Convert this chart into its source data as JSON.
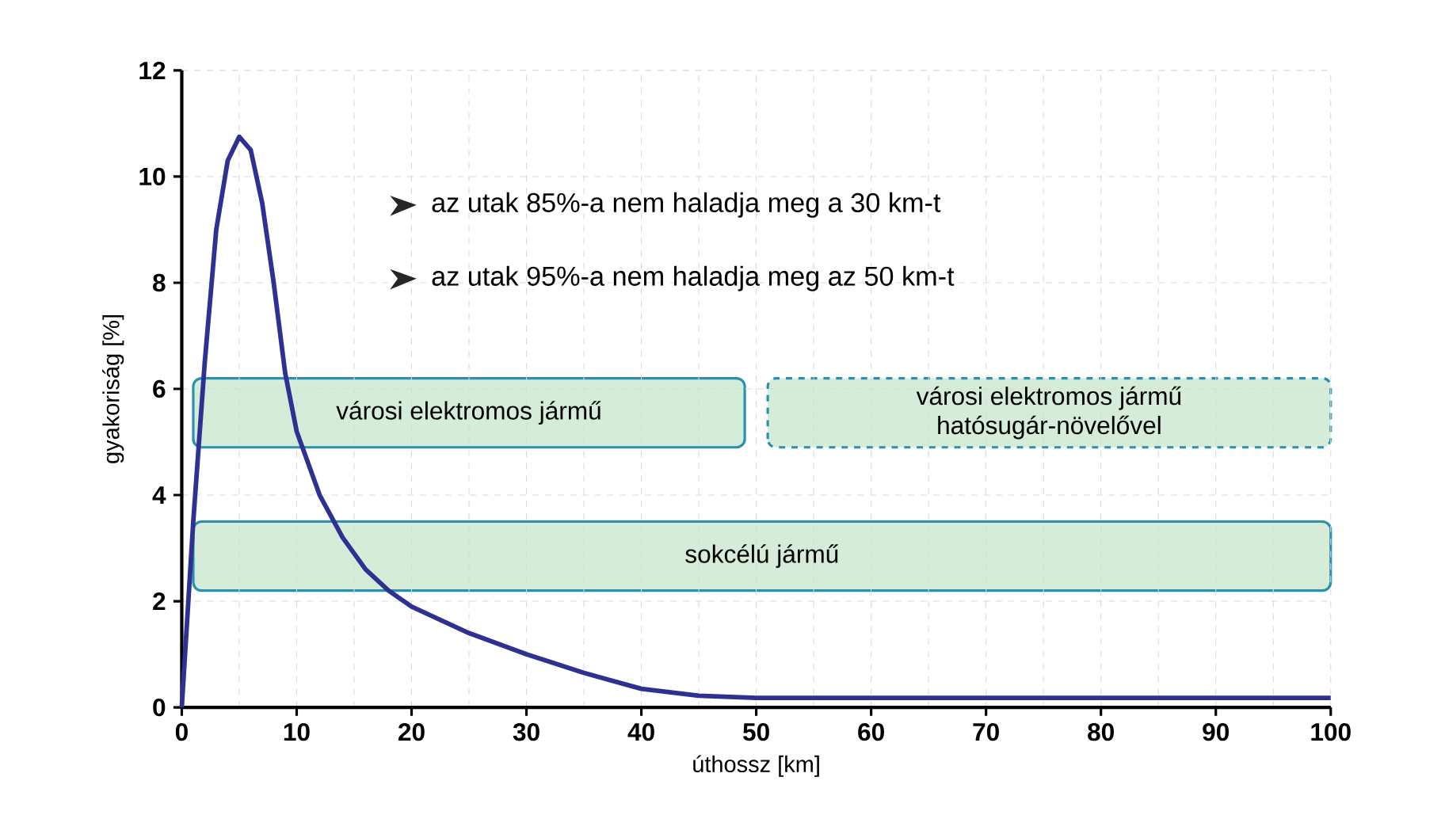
{
  "chart_data": {
    "type": "line",
    "xlabel": "úthossz [km]",
    "ylabel": "gyakoriság [%]",
    "xlim": [
      0,
      100
    ],
    "xticks": [
      0,
      10,
      20,
      30,
      40,
      50,
      60,
      70,
      80,
      90,
      100
    ],
    "ylim": [
      0,
      12
    ],
    "yticks": [
      0,
      2,
      4,
      6,
      8,
      10,
      12
    ],
    "grid": true,
    "series": [
      {
        "color": "#2e3192",
        "x": [
          0,
          1,
          2,
          3,
          4,
          5,
          6,
          7,
          8,
          9,
          10,
          12,
          14,
          16,
          18,
          20,
          25,
          30,
          35,
          40,
          45,
          50,
          60,
          70,
          80,
          90,
          100
        ],
        "values": [
          0,
          3.5,
          6.5,
          9,
          10.3,
          10.75,
          10.5,
          9.5,
          8,
          6.3,
          5.2,
          4,
          3.2,
          2.6,
          2.2,
          1.9,
          1.4,
          1,
          0.65,
          0.35,
          0.22,
          0.18,
          0.18,
          0.18,
          0.18,
          0.18,
          0.18
        ]
      }
    ],
    "annotations": [
      "az utak 85%-a nem haladja meg a 30 km-t",
      "az utak 95%-a nem haladja meg az 50 km-t",
      "városi elektromos jármű",
      "városi elektromos jármű\nhatósugár-növelővel",
      "sokcélú jármű"
    ]
  }
}
